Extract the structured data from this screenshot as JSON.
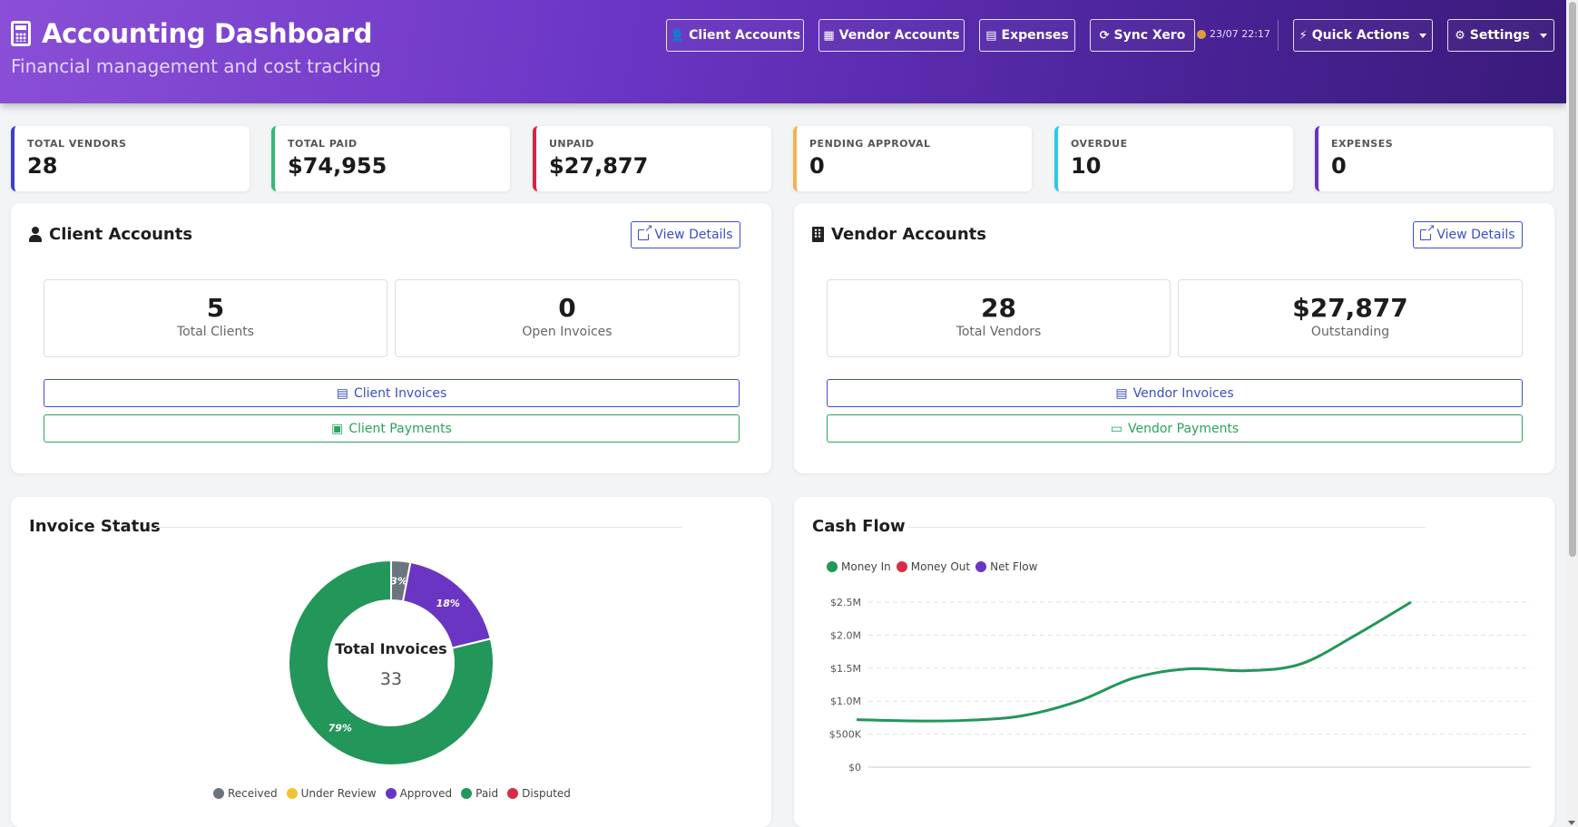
{
  "header": {
    "title": "Accounting Dashboard",
    "subtitle": "Financial management and cost tracking",
    "nav": {
      "client_accounts": "Client Accounts",
      "vendor_accounts": "Vendor Accounts",
      "expenses": "Expenses",
      "sync": "Sync Xero",
      "sync_time": "23/07 22:17",
      "quick_actions": "Quick Actions",
      "settings": "Settings"
    }
  },
  "stats": [
    {
      "label": "TOTAL VENDORS",
      "value": "28",
      "color": "#3b3fc9"
    },
    {
      "label": "TOTAL PAID",
      "value": "$74,955",
      "color": "#37b873"
    },
    {
      "label": "UNPAID",
      "value": "$27,877",
      "color": "#d5263f"
    },
    {
      "label": "PENDING APPROVAL",
      "value": "0",
      "color": "#f0b552"
    },
    {
      "label": "OVERDUE",
      "value": "10",
      "color": "#2cc9e6"
    },
    {
      "label": "EXPENSES",
      "value": "0",
      "color": "#6a31c0"
    }
  ],
  "client_panel": {
    "title": "Client Accounts",
    "view_details": "View Details",
    "metrics": [
      {
        "value": "5",
        "label": "Total Clients"
      },
      {
        "value": "0",
        "label": "Open Invoices"
      }
    ],
    "invoices_btn": "Client Invoices",
    "payments_btn": "Client Payments"
  },
  "vendor_panel": {
    "title": "Vendor Accounts",
    "view_details": "View Details",
    "metrics": [
      {
        "value": "28",
        "label": "Total Vendors"
      },
      {
        "value": "$27,877",
        "label": "Outstanding"
      }
    ],
    "invoices_btn": "Vendor Invoices",
    "payments_btn": "Vendor Payments"
  },
  "invoice_status": {
    "title": "Invoice Status",
    "center_label": "Total Invoices",
    "center_value": "33",
    "chart_data": {
      "type": "pie",
      "categories": [
        "Received",
        "Under Review",
        "Approved",
        "Paid",
        "Disputed"
      ],
      "values": [
        1,
        0,
        6,
        26,
        0
      ],
      "percent_labels": [
        "3%",
        "",
        "18%",
        "79%",
        ""
      ],
      "colors": [
        "#6c757d",
        "#f2c12e",
        "#6b35c4",
        "#23965a",
        "#d82c45"
      ],
      "legend_position": "bottom"
    }
  },
  "cash_flow": {
    "title": "Cash Flow",
    "chart_data": {
      "type": "line",
      "series": [
        {
          "name": "Money In",
          "color": "#23965a",
          "values": [
            720000,
            700000,
            710000,
            780000,
            1000000,
            1350000,
            1490000,
            1460000,
            1560000,
            2000000,
            2500000
          ]
        },
        {
          "name": "Money Out",
          "color": "#d82c45",
          "values": []
        },
        {
          "name": "Net Flow",
          "color": "#6b35c4",
          "values": []
        }
      ],
      "y_ticks": [
        "$0",
        "$500K",
        "$1.0M",
        "$1.5M",
        "$2.0M",
        "$2.5M"
      ],
      "ylim": [
        0,
        2500000
      ],
      "grid": true,
      "legend_position": "top-left"
    }
  }
}
